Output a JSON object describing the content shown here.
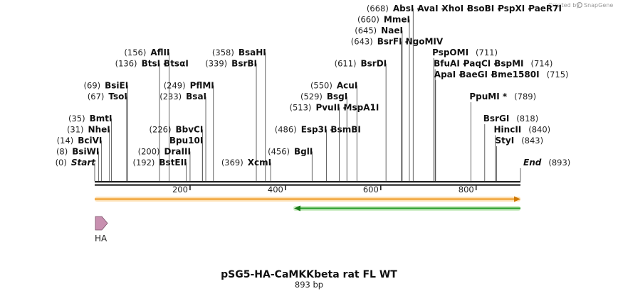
{
  "brand": {
    "text": "Created by",
    "name": "SnapGene"
  },
  "title": "pSG5-HA-CaMKKbeta rat FL WT",
  "subtitle": "893 bp",
  "sequence_length": 893,
  "ruler_ticks": [
    "200",
    "400",
    "600",
    "800"
  ],
  "colors": {
    "orf_orange": "#f0a030",
    "orf_green": "#2ca02c",
    "feature_pink": "#c890b0",
    "backbone": "#222222"
  },
  "feature": {
    "name": "HA",
    "icon": "right-arrow-icon"
  },
  "orfs": [
    {
      "name": "orange-orf",
      "from": 1,
      "to": 893,
      "direction": "forward"
    },
    {
      "name": "green-orf",
      "from": 420,
      "to": 893,
      "direction": "reverse"
    }
  ],
  "sites": [
    {
      "pos": 0,
      "pos_label": "(0)",
      "names": [
        "Start"
      ],
      "row": 0,
      "side": "left",
      "special": true
    },
    {
      "pos": 8,
      "pos_label": "(8)",
      "names": [
        "BsiWI"
      ],
      "row": 1,
      "side": "left"
    },
    {
      "pos": 14,
      "pos_label": "(14)",
      "names": [
        "BciVI"
      ],
      "row": 2,
      "side": "left"
    },
    {
      "pos": 31,
      "pos_label": "(31)",
      "names": [
        "NheI"
      ],
      "row": 3,
      "side": "left"
    },
    {
      "pos": 35,
      "pos_label": "(35)",
      "names": [
        "BmtI"
      ],
      "row": 4,
      "side": "left"
    },
    {
      "pos": 67,
      "pos_label": "(67)",
      "names": [
        "TsoI"
      ],
      "row": 6,
      "side": "left"
    },
    {
      "pos": 69,
      "pos_label": "(69)",
      "names": [
        "BsiEI"
      ],
      "row": 7,
      "side": "left"
    },
    {
      "pos": 136,
      "pos_label": "(136)",
      "names": [
        "BtsI",
        "BtsαI"
      ],
      "row": 9,
      "side": "left"
    },
    {
      "pos": 156,
      "pos_label": "(156)",
      "names": [
        "AflII"
      ],
      "row": 10,
      "side": "left"
    },
    {
      "pos": 192,
      "pos_label": "(192)",
      "names": [
        "BstEII"
      ],
      "row": 0,
      "side": "left"
    },
    {
      "pos": 200,
      "pos_label": "(200)",
      "names": [
        "DraIII"
      ],
      "row": 1,
      "side": "left"
    },
    {
      "pos": 226,
      "pos_label": "(226)",
      "names": [
        "Bpu10I"
      ],
      "row": 2,
      "side": "left",
      "no_num": true
    },
    {
      "pos": 226,
      "pos_label": "(226)",
      "names": [
        "BbvCI"
      ],
      "row": 3,
      "side": "left"
    },
    {
      "pos": 233,
      "pos_label": "(233)",
      "names": [
        "BsaI"
      ],
      "row": 6,
      "side": "left"
    },
    {
      "pos": 249,
      "pos_label": "(249)",
      "names": [
        "PflMI"
      ],
      "row": 7,
      "side": "left"
    },
    {
      "pos": 339,
      "pos_label": "(339)",
      "names": [
        "BsrBI"
      ],
      "row": 9,
      "side": "left"
    },
    {
      "pos": 358,
      "pos_label": "(358)",
      "names": [
        "BsaHI"
      ],
      "row": 10,
      "side": "left"
    },
    {
      "pos": 369,
      "pos_label": "(369)",
      "names": [
        "XcmI"
      ],
      "row": 0,
      "side": "left"
    },
    {
      "pos": 456,
      "pos_label": "(456)",
      "names": [
        "BglI"
      ],
      "row": 1,
      "side": "left"
    },
    {
      "pos": 486,
      "pos_label": "(486)",
      "names": [
        "Esp3I",
        "BsmBI"
      ],
      "row": 3,
      "side": "left"
    },
    {
      "pos": 513,
      "pos_label": "(513)",
      "names": [
        "PvuII",
        "MspA1I"
      ],
      "row": 5,
      "side": "left"
    },
    {
      "pos": 529,
      "pos_label": "(529)",
      "names": [
        "BsgI"
      ],
      "row": 6,
      "side": "left"
    },
    {
      "pos": 550,
      "pos_label": "(550)",
      "names": [
        "AcuI"
      ],
      "row": 7,
      "side": "left"
    },
    {
      "pos": 611,
      "pos_label": "(611)",
      "names": [
        "BsrDI"
      ],
      "row": 9,
      "side": "left"
    },
    {
      "pos": 643,
      "pos_label": "(643)",
      "names": [
        "BsrFI",
        "NgoMIV"
      ],
      "row": 11,
      "side": "left"
    },
    {
      "pos": 645,
      "pos_label": "(645)",
      "names": [
        "NaeI"
      ],
      "row": 12,
      "side": "left"
    },
    {
      "pos": 660,
      "pos_label": "(660)",
      "names": [
        "MmeI"
      ],
      "row": 13,
      "side": "left"
    },
    {
      "pos": 668,
      "pos_label": "(668)",
      "names": [
        "AbsI",
        "AvaI",
        "XhoI",
        "BsoBI",
        "PspXI",
        "PaeR7I"
      ],
      "row": 14,
      "side": "left"
    },
    {
      "pos": 711,
      "pos_label": "(711)",
      "names": [
        "PspOMI"
      ],
      "row": 10,
      "side": "right"
    },
    {
      "pos": 714,
      "pos_label": "(714)",
      "names": [
        "BfuAI",
        "PaqCI",
        "BspMI"
      ],
      "row": 9,
      "side": "right"
    },
    {
      "pos": 715,
      "pos_label": "(715)",
      "names": [
        "ApaI",
        "BaeGI",
        "Bme1580I"
      ],
      "row": 8,
      "side": "right"
    },
    {
      "pos": 789,
      "pos_label": "(789)",
      "names": [
        "PpuMI *"
      ],
      "row": 6,
      "side": "right"
    },
    {
      "pos": 818,
      "pos_label": "(818)",
      "names": [
        "BsrGI"
      ],
      "row": 4,
      "side": "right"
    },
    {
      "pos": 840,
      "pos_label": "(840)",
      "names": [
        "HincII"
      ],
      "row": 3,
      "side": "right"
    },
    {
      "pos": 843,
      "pos_label": "(843)",
      "names": [
        "StyI"
      ],
      "row": 2,
      "side": "right"
    },
    {
      "pos": 893,
      "pos_label": "(893)",
      "names": [
        "End"
      ],
      "row": 0,
      "side": "right",
      "special": true
    }
  ]
}
